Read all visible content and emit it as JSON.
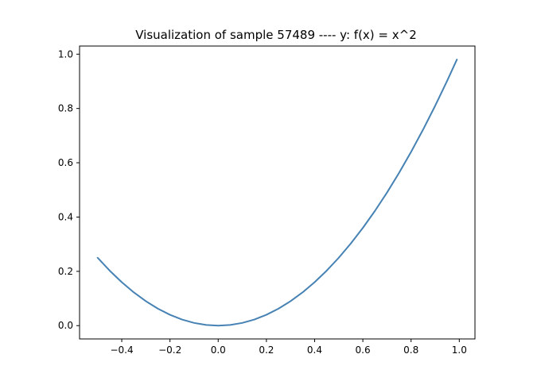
{
  "chart_data": {
    "type": "line",
    "title": "Visualization of sample 57489 ---- y: f(x) = x^2",
    "xlabel": "",
    "ylabel": "",
    "xlim": [
      -0.575,
      1.065
    ],
    "ylim": [
      -0.049,
      1.03
    ],
    "x_ticks": [
      -0.4,
      -0.2,
      0.0,
      0.2,
      0.4,
      0.6,
      0.8,
      1.0
    ],
    "x_tick_labels": [
      "−0.4",
      "−0.2",
      "0.0",
      "0.2",
      "0.4",
      "0.6",
      "0.8",
      "1.0"
    ],
    "y_ticks": [
      0.0,
      0.2,
      0.4,
      0.6,
      0.8,
      1.0
    ],
    "y_tick_labels": [
      "0.0",
      "0.2",
      "0.4",
      "0.6",
      "0.8",
      "1.0"
    ],
    "grid": false,
    "series": [
      {
        "color": "#4682b4",
        "x": [
          -0.5,
          -0.45,
          -0.4,
          -0.35,
          -0.3,
          -0.25,
          -0.2,
          -0.15,
          -0.1,
          -0.05,
          0.0,
          0.05,
          0.1,
          0.15,
          0.2,
          0.25,
          0.3,
          0.35,
          0.4,
          0.45,
          0.5,
          0.55,
          0.6,
          0.65,
          0.7,
          0.75,
          0.8,
          0.85,
          0.9,
          0.95,
          0.99
        ],
        "y": [
          0.25,
          0.2025,
          0.16,
          0.1225,
          0.09,
          0.0625,
          0.04,
          0.0225,
          0.01,
          0.0025,
          0.0,
          0.0025,
          0.01,
          0.0225,
          0.04,
          0.0625,
          0.09,
          0.1225,
          0.16,
          0.2025,
          0.25,
          0.3025,
          0.36,
          0.4225,
          0.49,
          0.5625,
          0.64,
          0.7225,
          0.81,
          0.9025,
          0.9801
        ]
      }
    ]
  }
}
